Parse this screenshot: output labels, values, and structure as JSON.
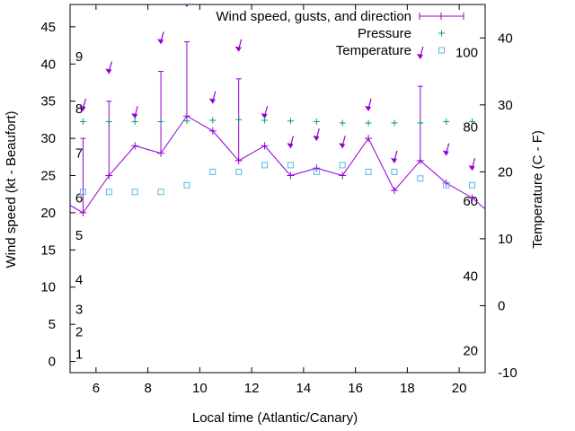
{
  "chart_data": {
    "type": "line",
    "xlabel": "Local time (Atlantic/Canary)",
    "ylabel": "Wind speed (kt - Beaufort)",
    "y2label": "Temperature (C - F)",
    "xlim": [
      5,
      21
    ],
    "ylim": [
      -1.5,
      48
    ],
    "y2lim": [
      -10,
      45
    ],
    "x_ticks": [
      6,
      8,
      10,
      12,
      14,
      16,
      18,
      20
    ],
    "y_ticks": [
      0,
      5,
      10,
      15,
      20,
      25,
      30,
      35,
      40,
      45
    ],
    "y2_ticks": [
      -10,
      0,
      10,
      20,
      30,
      40
    ],
    "beaufort_labels": [
      {
        "label": "1",
        "value": 1
      },
      {
        "label": "2",
        "value": 4
      },
      {
        "label": "3",
        "value": 7
      },
      {
        "label": "4",
        "value": 11
      },
      {
        "label": "5",
        "value": 17
      },
      {
        "label": "6",
        "value": 22
      },
      {
        "label": "7",
        "value": 28
      },
      {
        "label": "8",
        "value": 34
      },
      {
        "label": "9",
        "value": 41
      }
    ],
    "fahrenheit_labels": [
      {
        "label": "20",
        "value": -6.7
      },
      {
        "label": "40",
        "value": 4.4
      },
      {
        "label": "60",
        "value": 15.6
      },
      {
        "label": "80",
        "value": 26.7
      },
      {
        "label": "100",
        "value": 37.8
      }
    ],
    "legend": {
      "position": "top-right",
      "wind": "Wind speed, gusts, and direction",
      "pressure": "Pressure",
      "temperature": "Temperature"
    },
    "colors": {
      "wind": "#9400d3",
      "pressure": "#009e73",
      "temperature": "#56b4e9"
    },
    "wind": {
      "x": [
        4.5,
        5.5,
        6.5,
        7.5,
        8.5,
        9.5,
        10.5,
        11.5,
        12.5,
        13.5,
        14.5,
        15.5,
        16.5,
        17.5,
        18.5,
        19.5,
        20.5,
        21.5
      ],
      "speed": [
        22,
        20,
        25,
        29,
        28,
        33,
        31,
        27,
        29,
        25,
        26,
        25,
        30,
        23,
        27,
        24,
        22,
        19
      ]
    },
    "gusts": {
      "x": [
        5.5,
        6.5,
        8.5,
        9.5,
        11.5,
        18.5
      ],
      "value": [
        30,
        35,
        39,
        43,
        38,
        37
      ]
    },
    "direction_arrows": {
      "x": [
        5.5,
        6.5,
        7.5,
        8.5,
        9.5,
        10.5,
        11.5,
        12.5,
        13.5,
        14.5,
        15.5,
        16.5,
        17.5,
        18.5,
        19.5,
        20.5
      ],
      "y": [
        34,
        39,
        33,
        43,
        48,
        35,
        42,
        33,
        29,
        30,
        29,
        34,
        27,
        41,
        28,
        26
      ]
    },
    "pressure": {
      "x": [
        5.5,
        6.5,
        7.5,
        8.5,
        9.5,
        10.5,
        11.5,
        12.5,
        13.5,
        14.5,
        15.5,
        16.5,
        17.5,
        18.5,
        19.5,
        20.5
      ],
      "y2": [
        27.5,
        27.5,
        27.5,
        27.5,
        27.6,
        27.7,
        27.8,
        27.7,
        27.6,
        27.5,
        27.3,
        27.3,
        27.3,
        27.3,
        27.5,
        27.5
      ]
    },
    "temperature": {
      "x": [
        5.5,
        6.5,
        7.5,
        8.5,
        9.5,
        10.5,
        11.5,
        12.5,
        13.5,
        14.5,
        15.5,
        16.5,
        17.5,
        18.5,
        19.5,
        20.5
      ],
      "y2": [
        17,
        17,
        17,
        17,
        18,
        20,
        20,
        21,
        21,
        20,
        21,
        20,
        20,
        19,
        18,
        18
      ]
    }
  }
}
